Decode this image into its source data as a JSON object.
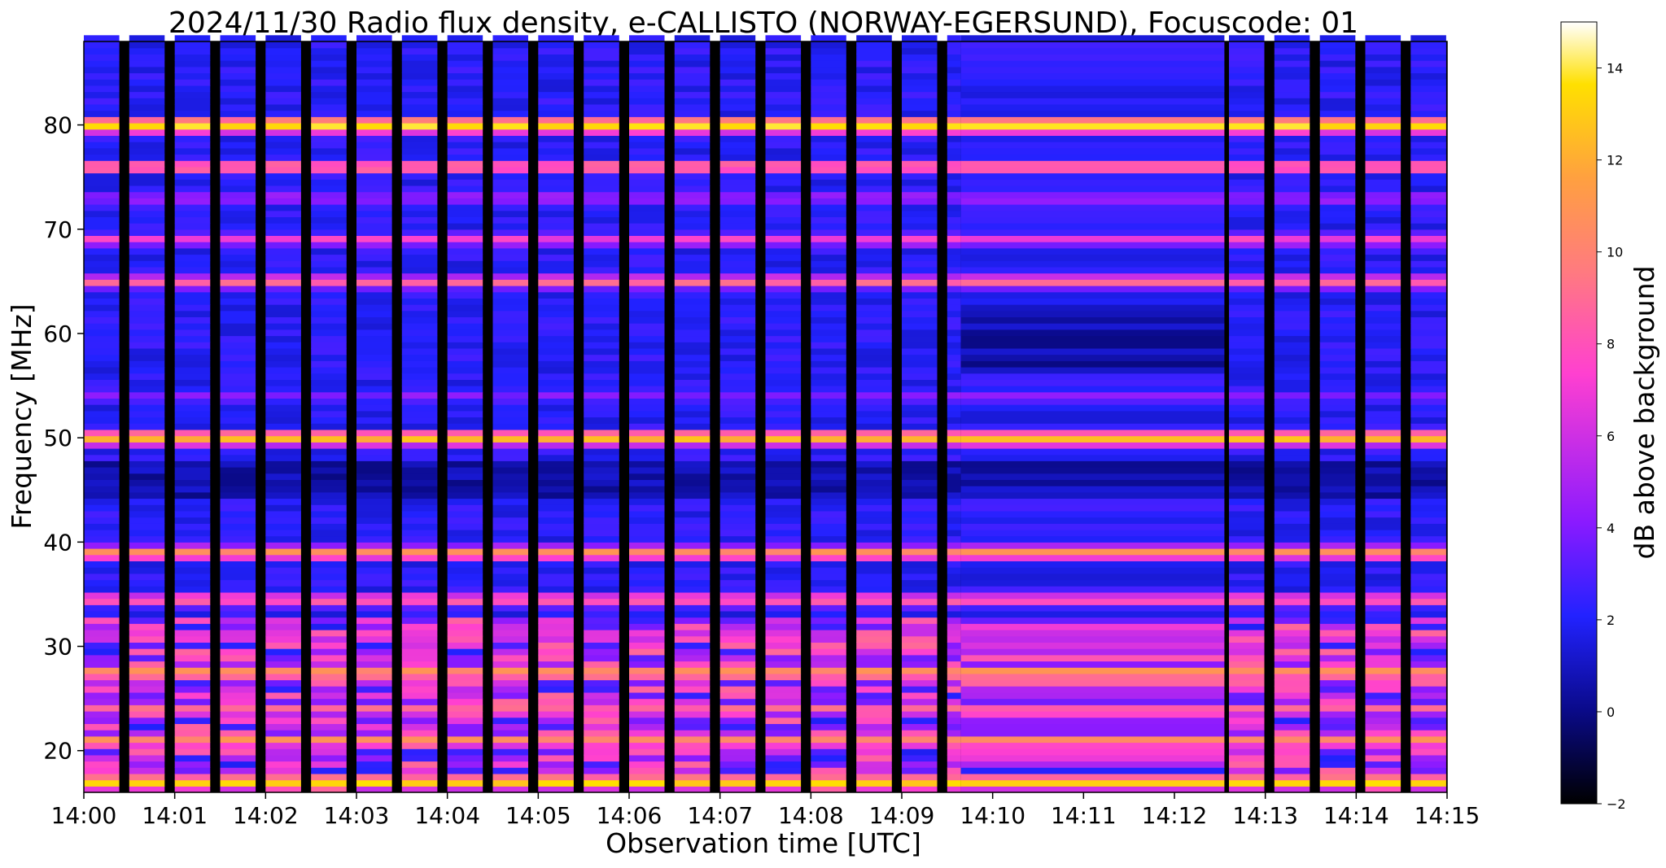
{
  "chart_data": [
    {
      "type": "heatmap",
      "title": "2024/11/30  Radio flux density, e-CALLISTO (NORWAY-EGERSUND), Focuscode: 01",
      "xlabel": "Observation time [UTC]",
      "ylabel": "Frequency [MHz]",
      "x_range_minutes": [
        0,
        15
      ],
      "x_tick_values": [
        0,
        1,
        2,
        3,
        4,
        5,
        6,
        7,
        8,
        9,
        10,
        11,
        12,
        13,
        14,
        15
      ],
      "x_tick_labels": [
        "14:00",
        "14:01",
        "14:02",
        "14:03",
        "14:04",
        "14:05",
        "14:06",
        "14:07",
        "14:08",
        "14:09",
        "14:10",
        "14:11",
        "14:12",
        "14:13",
        "14:14",
        "14:15"
      ],
      "ylim": [
        16,
        88
      ],
      "y_tick_values": [
        20,
        30,
        40,
        50,
        60,
        70,
        80
      ],
      "y_tick_labels": [
        "20",
        "30",
        "40",
        "50",
        "60",
        "70",
        "80"
      ],
      "continuous_observation_minutes": [
        9.65,
        12.55
      ],
      "sweep_period_minutes": 0.5,
      "bright_bands_mhz": [
        {
          "f": 80,
          "db": 13.5
        },
        {
          "f": 76,
          "db": 9
        },
        {
          "f": 73,
          "db": 5
        },
        {
          "f": 69,
          "db": 6.5
        },
        {
          "f": 65,
          "db": 8
        },
        {
          "f": 54,
          "db": 4
        },
        {
          "f": 50,
          "db": 12
        },
        {
          "f": 39,
          "db": 10
        },
        {
          "f": 34.5,
          "db": 8
        },
        {
          "f": 31,
          "db": 7
        },
        {
          "f": 28.5,
          "db": 5
        },
        {
          "f": 27.5,
          "db": 11
        },
        {
          "f": 24,
          "db": 8
        },
        {
          "f": 21,
          "db": 10
        },
        {
          "f": 17,
          "db": 13
        }
      ],
      "colorbar": {
        "label": "dB above background",
        "range": [
          -2,
          15
        ],
        "tick_values": [
          -2,
          0,
          2,
          4,
          6,
          8,
          10,
          12,
          14
        ],
        "tick_labels": [
          "−2",
          "0",
          "2",
          "4",
          "6",
          "8",
          "10",
          "12",
          "14"
        ],
        "colormap": [
          "#000000",
          "#0a0a8a",
          "#2222ff",
          "#8a1aff",
          "#ff40d0",
          "#ff7a80",
          "#ffa040",
          "#ffe000",
          "#ffffff"
        ]
      }
    }
  ]
}
